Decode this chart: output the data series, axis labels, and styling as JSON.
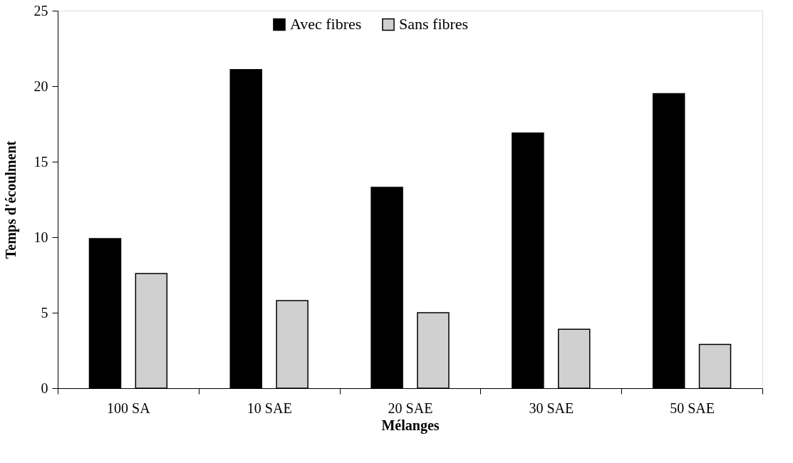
{
  "chart_data": {
    "type": "bar",
    "xlabel": "Mélanges",
    "ylabel": "Temps d'écoulment",
    "categories": [
      "100 SA",
      "10 SAE",
      "20 SAE",
      "30 SAE",
      "50 SAE"
    ],
    "series": [
      {
        "name": "Avec fibres",
        "color": "#000000",
        "values": [
          9.9,
          21.1,
          13.3,
          16.9,
          19.5
        ]
      },
      {
        "name": "Sans fibres",
        "color": "#d0d0d0",
        "values": [
          7.6,
          5.8,
          5.0,
          3.9,
          2.9
        ]
      }
    ],
    "ylim": [
      0,
      25
    ],
    "yticks": [
      0,
      5,
      10,
      15,
      20,
      25
    ],
    "grid": false,
    "legend": "top"
  }
}
